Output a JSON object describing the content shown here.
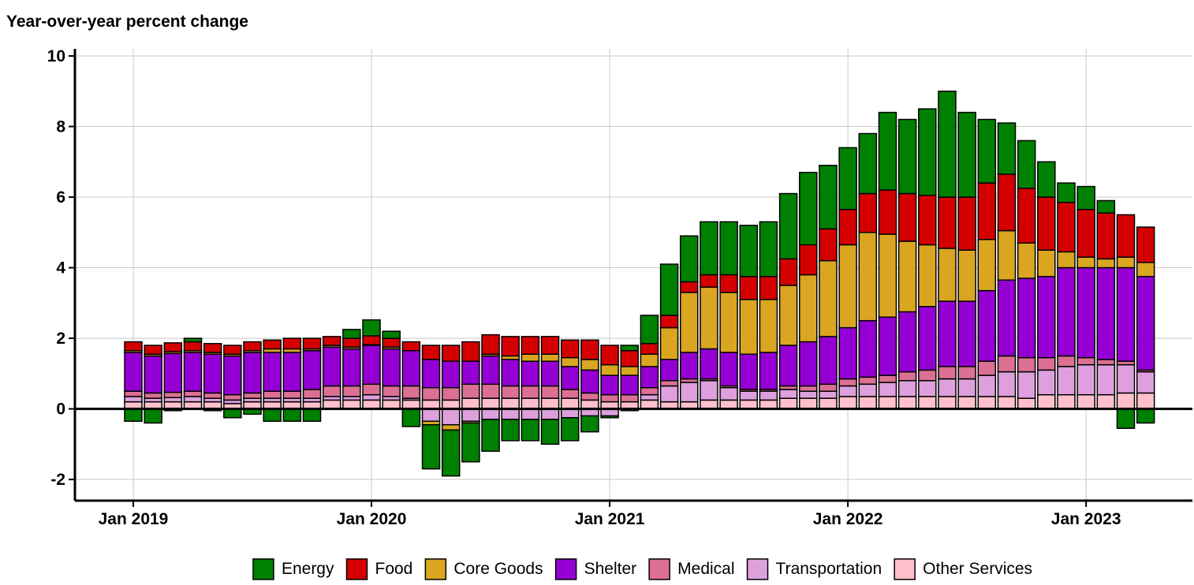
{
  "chart_data": {
    "type": "stacked_bar",
    "title": "Year-over-year percent change",
    "categories": [
      "Jan 2019",
      null,
      null,
      null,
      null,
      null,
      null,
      null,
      null,
      null,
      null,
      null,
      "Jan 2020",
      null,
      null,
      null,
      null,
      null,
      null,
      null,
      null,
      null,
      null,
      null,
      "Jan 2021",
      null,
      null,
      null,
      null,
      null,
      null,
      null,
      null,
      null,
      null,
      null,
      "Jan 2022",
      null,
      null,
      null,
      null,
      null,
      null,
      null,
      null,
      null,
      null,
      null,
      "Jan 2023",
      null,
      null,
      null
    ],
    "series": [
      {
        "name": "Energy",
        "color": "#008000",
        "values": [
          -0.35,
          -0.4,
          -0.05,
          0.1,
          -0.05,
          -0.25,
          -0.15,
          -0.35,
          -0.35,
          -0.35,
          0,
          0.25,
          0.45,
          0.2,
          -0.5,
          -1.25,
          -1.3,
          -1.1,
          -0.9,
          -0.6,
          -0.6,
          -0.7,
          -0.65,
          -0.45,
          -0.05,
          0.15,
          0.8,
          1.45,
          1.3,
          1.5,
          1.5,
          1.45,
          1.55,
          1.85,
          2.05,
          1.8,
          1.75,
          1.7,
          2.2,
          2.1,
          2.45,
          3.0,
          2.4,
          1.8,
          1.45,
          1.35,
          1.0,
          0.55,
          0.65,
          0.35,
          -0.55,
          -0.4
        ]
      },
      {
        "name": "Food",
        "color": "#d40000",
        "values": [
          0.25,
          0.25,
          0.25,
          0.25,
          0.25,
          0.25,
          0.25,
          0.25,
          0.3,
          0.3,
          0.25,
          0.25,
          0.25,
          0.25,
          0.25,
          0.4,
          0.45,
          0.55,
          0.55,
          0.55,
          0.5,
          0.5,
          0.5,
          0.55,
          0.55,
          0.45,
          0.3,
          0.35,
          0.3,
          0.35,
          0.5,
          0.65,
          0.65,
          0.75,
          0.85,
          0.9,
          1.0,
          1.1,
          1.25,
          1.35,
          1.4,
          1.45,
          1.5,
          1.6,
          1.6,
          1.55,
          1.5,
          1.4,
          1.35,
          1.3,
          1.2,
          1.0
        ]
      },
      {
        "name": "Core Goods",
        "color": "#daa520",
        "values": [
          0.05,
          0.05,
          0.05,
          0.05,
          0.05,
          0.05,
          0.05,
          0.1,
          0.1,
          0.05,
          0.05,
          0.05,
          0.02,
          0.05,
          0,
          -0.1,
          -0.15,
          -0.05,
          0.05,
          0.1,
          0.2,
          0.2,
          0.25,
          0.3,
          0.3,
          0.25,
          0.35,
          0.9,
          1.7,
          1.75,
          1.7,
          1.55,
          1.5,
          1.7,
          1.9,
          2.15,
          2.35,
          2.5,
          2.35,
          2.0,
          1.75,
          1.5,
          1.45,
          1.45,
          1.4,
          1.0,
          0.75,
          0.45,
          0.3,
          0.25,
          0.3,
          0.4
        ]
      },
      {
        "name": "Shelter",
        "color": "#9400d3",
        "values": [
          1.1,
          1.05,
          1.1,
          1.1,
          1.1,
          1.1,
          1.15,
          1.1,
          1.1,
          1.1,
          1.1,
          1.05,
          1.1,
          1.05,
          1.0,
          0.8,
          0.75,
          0.65,
          0.8,
          0.75,
          0.7,
          0.7,
          0.65,
          0.65,
          0.55,
          0.55,
          0.6,
          0.6,
          0.75,
          0.85,
          0.95,
          1.0,
          1.05,
          1.15,
          1.25,
          1.35,
          1.45,
          1.6,
          1.65,
          1.7,
          1.8,
          1.85,
          1.85,
          2.0,
          2.15,
          2.25,
          2.3,
          2.5,
          2.55,
          2.6,
          2.65,
          2.65
        ]
      },
      {
        "name": "Medical",
        "color": "#db7093",
        "values": [
          0.15,
          0.15,
          0.15,
          0.15,
          0.15,
          0.15,
          0.15,
          0.2,
          0.2,
          0.25,
          0.3,
          0.3,
          0.3,
          0.3,
          0.35,
          0.35,
          0.35,
          0.4,
          0.4,
          0.35,
          0.35,
          0.35,
          0.25,
          0.2,
          0.2,
          0.2,
          0.2,
          0.15,
          0.1,
          0.05,
          0.05,
          0.05,
          0.05,
          0.1,
          0.15,
          0.2,
          0.2,
          0.2,
          0.2,
          0.25,
          0.3,
          0.35,
          0.35,
          0.4,
          0.45,
          0.4,
          0.35,
          0.3,
          0.2,
          0.15,
          0.1,
          0.05
        ]
      },
      {
        "name": "Transportation",
        "color": "#dda0dd",
        "values": [
          0.15,
          0.1,
          0.12,
          0.15,
          0.1,
          0.1,
          0.1,
          0.1,
          0.1,
          0.1,
          0.1,
          0.1,
          0.15,
          0.1,
          0.05,
          -0.35,
          -0.45,
          -0.35,
          -0.3,
          -0.3,
          -0.3,
          -0.3,
          -0.25,
          -0.2,
          -0.2,
          -0.05,
          0.15,
          0.45,
          0.55,
          0.55,
          0.35,
          0.25,
          0.25,
          0.25,
          0.2,
          0.2,
          0.3,
          0.35,
          0.4,
          0.45,
          0.45,
          0.5,
          0.5,
          0.6,
          0.7,
          0.75,
          0.7,
          0.8,
          0.85,
          0.85,
          0.8,
          0.6
        ]
      },
      {
        "name": "Other Services",
        "color": "#ffc0cb",
        "values": [
          0.2,
          0.2,
          0.2,
          0.2,
          0.2,
          0.15,
          0.2,
          0.2,
          0.2,
          0.2,
          0.25,
          0.25,
          0.25,
          0.25,
          0.25,
          0.25,
          0.25,
          0.3,
          0.3,
          0.3,
          0.3,
          0.3,
          0.3,
          0.25,
          0.2,
          0.2,
          0.25,
          0.2,
          0.2,
          0.25,
          0.25,
          0.25,
          0.25,
          0.3,
          0.3,
          0.3,
          0.35,
          0.35,
          0.35,
          0.35,
          0.35,
          0.35,
          0.35,
          0.35,
          0.35,
          0.3,
          0.4,
          0.4,
          0.4,
          0.4,
          0.45,
          0.45
        ]
      }
    ],
    "ylim": [
      -2.6,
      10.2
    ],
    "yticks": [
      -2,
      0,
      2,
      4,
      6,
      8,
      10
    ],
    "grid": true
  }
}
